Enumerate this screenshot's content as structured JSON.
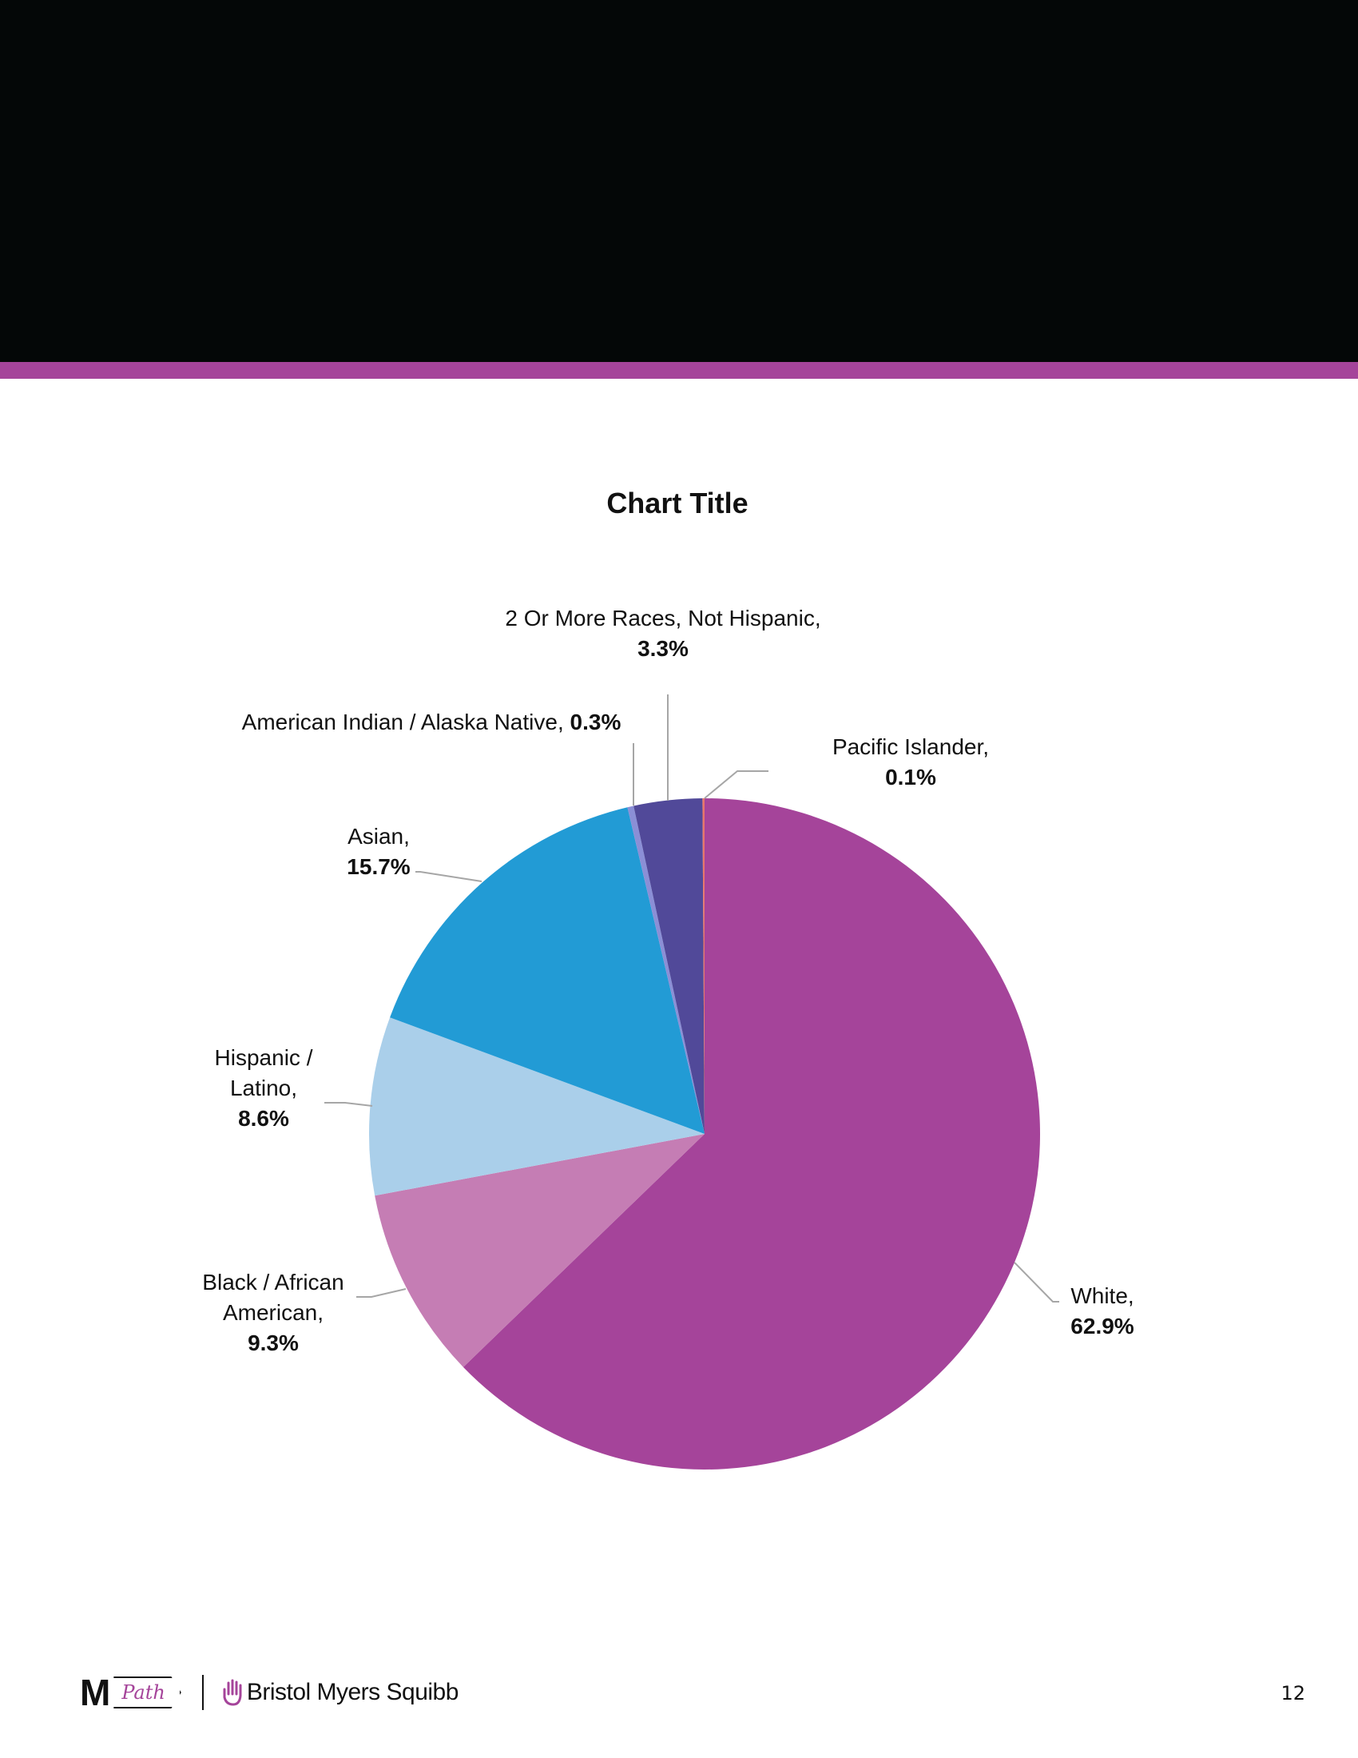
{
  "colors": {
    "header_band": "#040707",
    "accent_stripe": "#a5449a",
    "leader_line": "#a6a6a6"
  },
  "chart_data": {
    "type": "pie",
    "title": "Chart Title",
    "start_angle_deg": 0,
    "direction": "clockwise",
    "slices": [
      {
        "label": "White",
        "value": 62.9,
        "value_text": "62.9%",
        "color": "#a5449a"
      },
      {
        "label": "Black / African American",
        "value": 9.3,
        "value_text": "9.3%",
        "color": "#c57db4"
      },
      {
        "label": "Hispanic / Latino",
        "value": 8.6,
        "value_text": "8.6%",
        "color": "#aacfea"
      },
      {
        "label": "Asian",
        "value": 15.7,
        "value_text": "15.7%",
        "color": "#229bd5"
      },
      {
        "label": "American Indian / Alaska Native",
        "value": 0.3,
        "value_text": "0.3%",
        "color": "#8b8fd6"
      },
      {
        "label": "2 Or More Races, Not Hispanic",
        "value": 3.3,
        "value_text": "3.3%",
        "color": "#514999"
      },
      {
        "label": "Pacific Islander",
        "value": 0.1,
        "value_text": "0.1%",
        "color": "#e8766c"
      }
    ],
    "legend": "none"
  },
  "footer": {
    "mpath_logo": {
      "letter": "M",
      "word": "Path"
    },
    "company_logo_text": "Bristol Myers Squibb",
    "page_number": "12"
  }
}
